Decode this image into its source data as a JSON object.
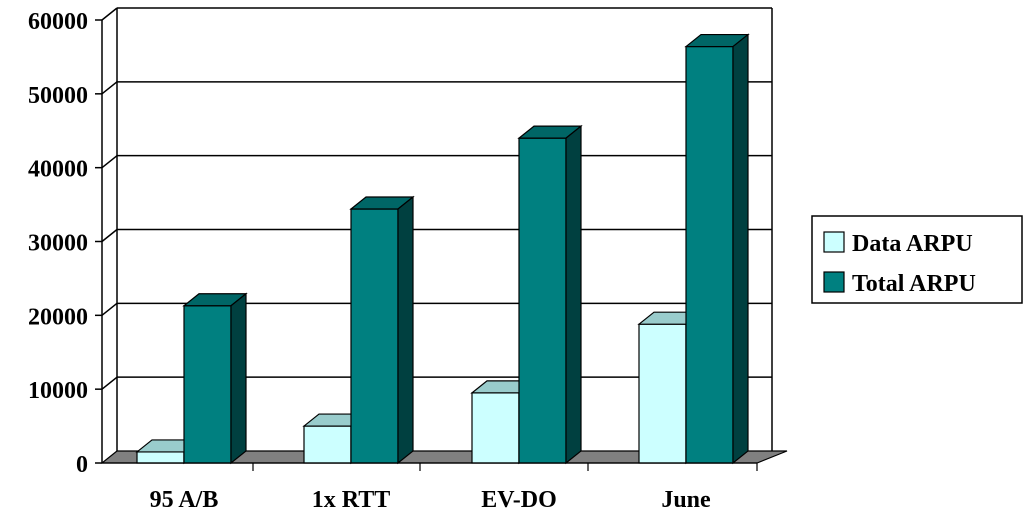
{
  "chart_data": {
    "type": "bar",
    "categories": [
      "95 A/B",
      "1x RTT",
      "EV-DO",
      "June"
    ],
    "series": [
      {
        "name": "Data ARPU",
        "values": [
          1500,
          5000,
          9500,
          18800
        ]
      },
      {
        "name": "Total ARPU",
        "values": [
          21300,
          34400,
          44000,
          56400
        ]
      }
    ],
    "ylim": [
      0,
      60000
    ],
    "yticks": [
      0,
      10000,
      20000,
      30000,
      40000,
      50000,
      60000
    ],
    "grid": true,
    "legend_position": "right",
    "colors": {
      "data_front": "#ccffff",
      "data_top": "#99cccc",
      "data_side": "#99cccc",
      "total_front": "#008080",
      "total_top": "#006666",
      "total_side": "#004040",
      "floor": "#808080"
    }
  }
}
